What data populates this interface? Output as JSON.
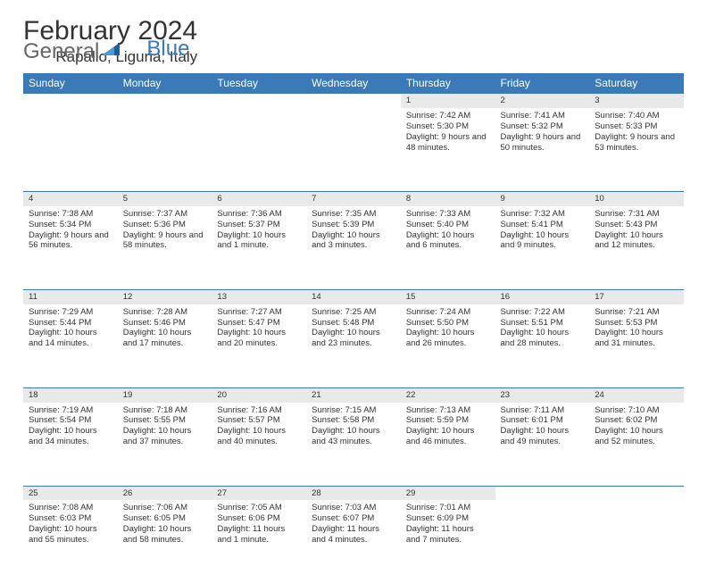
{
  "brand": {
    "part1": "General",
    "part2": "Blue"
  },
  "title": "February 2024",
  "location": "Rapallo, Liguria, Italy",
  "colors": {
    "header_bg": "#3a7ab8",
    "header_text": "#ffffff",
    "daynum_bg": "#e9e9e9",
    "border": "#3a7ab8",
    "text": "#333333",
    "logo_gray": "#666666",
    "logo_blue": "#3a7ab8",
    "page_bg": "#ffffff"
  },
  "weekdays": [
    "Sunday",
    "Monday",
    "Tuesday",
    "Wednesday",
    "Thursday",
    "Friday",
    "Saturday"
  ],
  "weeks": [
    [
      null,
      null,
      null,
      null,
      {
        "n": "1",
        "sr": "7:42 AM",
        "ss": "5:30 PM",
        "dl": "9 hours and 48 minutes."
      },
      {
        "n": "2",
        "sr": "7:41 AM",
        "ss": "5:32 PM",
        "dl": "9 hours and 50 minutes."
      },
      {
        "n": "3",
        "sr": "7:40 AM",
        "ss": "5:33 PM",
        "dl": "9 hours and 53 minutes."
      }
    ],
    [
      {
        "n": "4",
        "sr": "7:38 AM",
        "ss": "5:34 PM",
        "dl": "9 hours and 56 minutes."
      },
      {
        "n": "5",
        "sr": "7:37 AM",
        "ss": "5:36 PM",
        "dl": "9 hours and 58 minutes."
      },
      {
        "n": "6",
        "sr": "7:36 AM",
        "ss": "5:37 PM",
        "dl": "10 hours and 1 minute."
      },
      {
        "n": "7",
        "sr": "7:35 AM",
        "ss": "5:39 PM",
        "dl": "10 hours and 3 minutes."
      },
      {
        "n": "8",
        "sr": "7:33 AM",
        "ss": "5:40 PM",
        "dl": "10 hours and 6 minutes."
      },
      {
        "n": "9",
        "sr": "7:32 AM",
        "ss": "5:41 PM",
        "dl": "10 hours and 9 minutes."
      },
      {
        "n": "10",
        "sr": "7:31 AM",
        "ss": "5:43 PM",
        "dl": "10 hours and 12 minutes."
      }
    ],
    [
      {
        "n": "11",
        "sr": "7:29 AM",
        "ss": "5:44 PM",
        "dl": "10 hours and 14 minutes."
      },
      {
        "n": "12",
        "sr": "7:28 AM",
        "ss": "5:46 PM",
        "dl": "10 hours and 17 minutes."
      },
      {
        "n": "13",
        "sr": "7:27 AM",
        "ss": "5:47 PM",
        "dl": "10 hours and 20 minutes."
      },
      {
        "n": "14",
        "sr": "7:25 AM",
        "ss": "5:48 PM",
        "dl": "10 hours and 23 minutes."
      },
      {
        "n": "15",
        "sr": "7:24 AM",
        "ss": "5:50 PM",
        "dl": "10 hours and 26 minutes."
      },
      {
        "n": "16",
        "sr": "7:22 AM",
        "ss": "5:51 PM",
        "dl": "10 hours and 28 minutes."
      },
      {
        "n": "17",
        "sr": "7:21 AM",
        "ss": "5:53 PM",
        "dl": "10 hours and 31 minutes."
      }
    ],
    [
      {
        "n": "18",
        "sr": "7:19 AM",
        "ss": "5:54 PM",
        "dl": "10 hours and 34 minutes."
      },
      {
        "n": "19",
        "sr": "7:18 AM",
        "ss": "5:55 PM",
        "dl": "10 hours and 37 minutes."
      },
      {
        "n": "20",
        "sr": "7:16 AM",
        "ss": "5:57 PM",
        "dl": "10 hours and 40 minutes."
      },
      {
        "n": "21",
        "sr": "7:15 AM",
        "ss": "5:58 PM",
        "dl": "10 hours and 43 minutes."
      },
      {
        "n": "22",
        "sr": "7:13 AM",
        "ss": "5:59 PM",
        "dl": "10 hours and 46 minutes."
      },
      {
        "n": "23",
        "sr": "7:11 AM",
        "ss": "6:01 PM",
        "dl": "10 hours and 49 minutes."
      },
      {
        "n": "24",
        "sr": "7:10 AM",
        "ss": "6:02 PM",
        "dl": "10 hours and 52 minutes."
      }
    ],
    [
      {
        "n": "25",
        "sr": "7:08 AM",
        "ss": "6:03 PM",
        "dl": "10 hours and 55 minutes."
      },
      {
        "n": "26",
        "sr": "7:06 AM",
        "ss": "6:05 PM",
        "dl": "10 hours and 58 minutes."
      },
      {
        "n": "27",
        "sr": "7:05 AM",
        "ss": "6:06 PM",
        "dl": "11 hours and 1 minute."
      },
      {
        "n": "28",
        "sr": "7:03 AM",
        "ss": "6:07 PM",
        "dl": "11 hours and 4 minutes."
      },
      {
        "n": "29",
        "sr": "7:01 AM",
        "ss": "6:09 PM",
        "dl": "11 hours and 7 minutes."
      },
      null,
      null
    ]
  ],
  "labels": {
    "sunrise": "Sunrise:",
    "sunset": "Sunset:",
    "daylight": "Daylight:"
  }
}
